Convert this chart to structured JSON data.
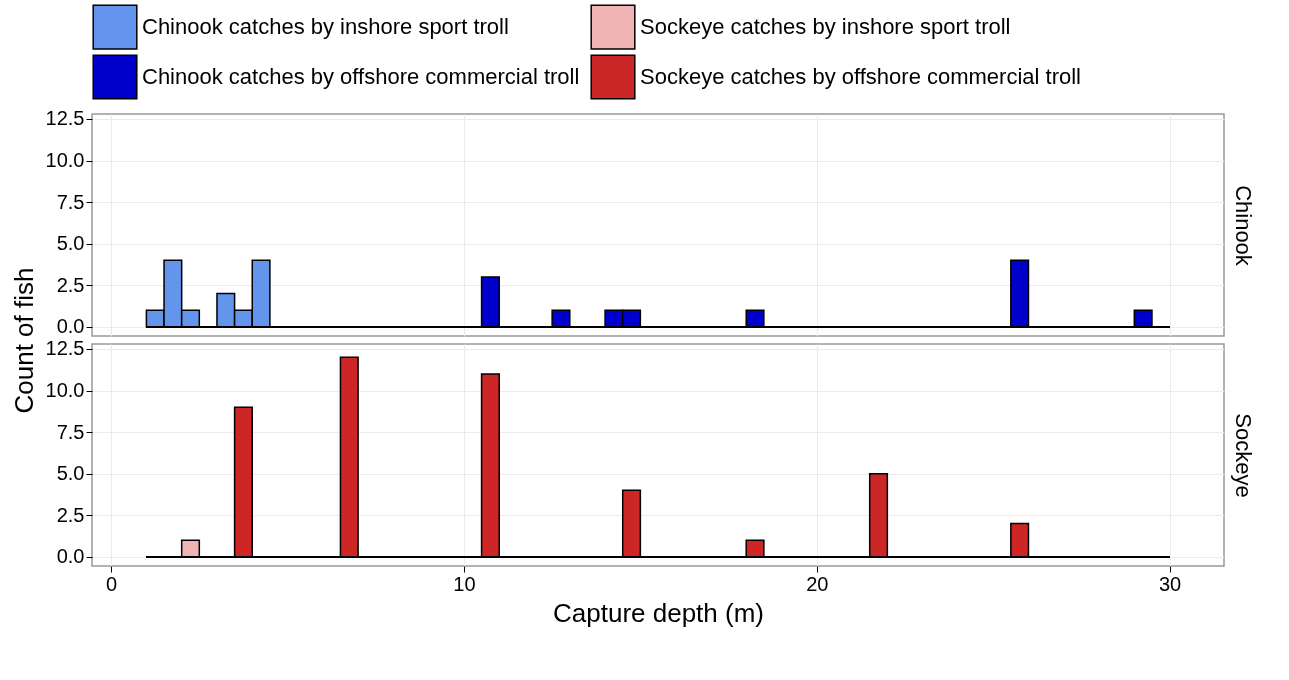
{
  "chart_data": [
    {
      "type": "histogram",
      "title": "Chinook",
      "ylabel": "Count of fish",
      "bins": [
        1,
        1.5,
        2,
        2.5,
        3,
        3.5,
        4,
        4.5,
        5,
        5.5,
        6,
        6.5,
        7,
        7.5,
        8,
        8.5,
        9,
        9.5,
        10,
        10.5,
        11,
        11.5,
        12,
        12.5,
        13,
        13.5,
        14,
        14.5,
        15,
        15.5,
        16,
        16.5,
        17,
        17.5,
        18,
        18.5,
        19,
        19.5,
        20,
        20.5,
        21,
        21.5,
        22,
        22.5,
        23,
        23.5,
        24,
        24.5,
        25,
        25.5,
        26,
        26.5,
        27,
        27.5,
        28,
        28.5,
        29,
        29.5,
        30
      ],
      "series": [
        {
          "name": "Chinook catches by inshore sport troll",
          "color": "#6495ed",
          "values": [
            1,
            4,
            1,
            0,
            2,
            1,
            4,
            0,
            0,
            0,
            0,
            0,
            0,
            0,
            0,
            0,
            0,
            0,
            0,
            0,
            0,
            0,
            0,
            0,
            0,
            0,
            0,
            0,
            0,
            0,
            0,
            0,
            0,
            0,
            0,
            0,
            0,
            0,
            0,
            0,
            0,
            0,
            0,
            0,
            0,
            0,
            0,
            0,
            0,
            0,
            0,
            0,
            0,
            0,
            0,
            0,
            0,
            0
          ]
        },
        {
          "name": "Chinook catches by offshore commercial troll",
          "color": "#0000cd",
          "values": [
            0,
            0,
            0,
            0,
            0,
            0,
            0,
            0,
            0,
            0,
            0,
            0,
            0,
            0,
            0,
            0,
            0,
            0,
            0,
            3,
            0,
            0,
            0,
            1,
            0,
            0,
            1,
            1,
            0,
            0,
            0,
            0,
            0,
            0,
            1,
            0,
            0,
            0,
            0,
            0,
            0,
            0,
            0,
            0,
            0,
            0,
            0,
            0,
            0,
            4,
            0,
            0,
            0,
            0,
            0,
            0,
            1,
            0
          ]
        }
      ],
      "xlim": [
        -0.4,
        31.4
      ],
      "xticks": [
        0,
        10,
        20,
        30
      ],
      "ylim": [
        -0.55,
        12.8
      ],
      "yticks": [
        {
          "value": 0,
          "label": "0.0"
        },
        2.5,
        {
          "value": 5,
          "label": "5.0"
        },
        7.5,
        {
          "value": 10,
          "label": "10.0"
        },
        12.5
      ],
      "tick_labels": "y",
      "grid": true,
      "legend": "top"
    },
    {
      "type": "histogram",
      "title": "Sockeye",
      "xlabel": "Capture depth (m)",
      "bins": [
        1,
        1.5,
        2,
        2.5,
        3,
        3.5,
        4,
        4.5,
        5,
        5.5,
        6,
        6.5,
        7,
        7.5,
        8,
        8.5,
        9,
        9.5,
        10,
        10.5,
        11,
        11.5,
        12,
        12.5,
        13,
        13.5,
        14,
        14.5,
        15,
        15.5,
        16,
        16.5,
        17,
        17.5,
        18,
        18.5,
        19,
        19.5,
        20,
        20.5,
        21,
        21.5,
        22,
        22.5,
        23,
        23.5,
        24,
        24.5,
        25,
        25.5,
        26,
        26.5,
        27,
        27.5,
        28,
        28.5,
        29,
        29.5,
        30
      ],
      "series": [
        {
          "name": "Sockeye catches by inshore sport troll",
          "color": "#f0b4b4",
          "values": [
            0,
            0,
            1,
            0,
            0,
            0,
            0,
            0,
            0,
            0,
            0,
            0,
            0,
            0,
            0,
            0,
            0,
            0,
            0,
            0,
            0,
            0,
            0,
            0,
            0,
            0,
            0,
            0,
            0,
            0,
            0,
            0,
            0,
            0,
            0,
            0,
            0,
            0,
            0,
            0,
            0,
            0,
            0,
            0,
            0,
            0,
            0,
            0,
            0,
            0,
            0,
            0,
            0,
            0,
            0,
            0,
            0,
            0
          ]
        },
        {
          "name": "Sockeye catches by offshore commercial troll",
          "color": "#cd2626",
          "values": [
            0,
            0,
            0,
            0,
            0,
            9,
            0,
            0,
            0,
            0,
            0,
            12,
            0,
            0,
            0,
            0,
            0,
            0,
            0,
            11,
            0,
            0,
            0,
            0,
            0,
            0,
            0,
            4,
            0,
            0,
            0,
            0,
            0,
            0,
            1,
            0,
            0,
            0,
            0,
            0,
            0,
            5,
            0,
            0,
            0,
            0,
            0,
            0,
            0,
            2,
            0,
            0,
            0,
            0,
            0,
            0,
            0,
            0
          ]
        }
      ],
      "xlim": [
        -0.4,
        31.4
      ],
      "xticks": [
        0,
        10,
        20,
        30
      ],
      "ylim": [
        -0.55,
        12.8
      ],
      "yticks": [
        {
          "value": 0,
          "label": "0.0"
        },
        2.5,
        {
          "value": 5,
          "label": "5.0"
        },
        7.5,
        {
          "value": 10,
          "label": "10.0"
        },
        12.5
      ],
      "grid": true,
      "legend": "top"
    }
  ]
}
